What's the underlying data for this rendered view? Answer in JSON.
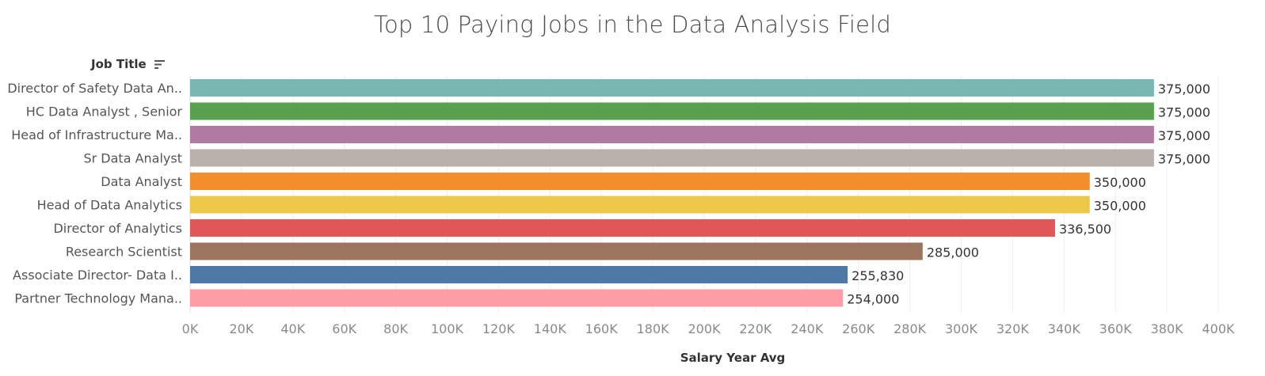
{
  "chart_data": {
    "type": "bar",
    "orientation": "horizontal",
    "title": "Top 10 Paying Jobs in the Data Analysis Field",
    "row_header": "Job Title",
    "xlabel": "Salary Year Avg",
    "ylabel": "",
    "xlim": [
      0,
      400000
    ],
    "grid": true,
    "categories": [
      "Director of Safety Data An..",
      "HC Data Analyst , Senior",
      "Head of Infrastructure Ma..",
      "Sr Data Analyst",
      "Data Analyst",
      "Head of Data Analytics",
      "Director of Analytics",
      "Research Scientist",
      "Associate Director- Data I..",
      "Partner Technology Mana.."
    ],
    "values": [
      375000,
      375000,
      375000,
      375000,
      350000,
      350000,
      336500,
      285000,
      255830,
      254000
    ],
    "value_labels": [
      "375,000",
      "375,000",
      "375,000",
      "375,000",
      "350,000",
      "350,000",
      "336,500",
      "285,000",
      "255,830",
      "254,000"
    ],
    "colors": [
      "#79b8b2",
      "#59a14f",
      "#b07aa1",
      "#bab0ac",
      "#f28e2b",
      "#edc948",
      "#e15759",
      "#9c755f",
      "#4e79a7",
      "#ff9da7"
    ],
    "x_ticks": [
      0,
      20000,
      40000,
      60000,
      80000,
      100000,
      120000,
      140000,
      160000,
      180000,
      200000,
      220000,
      240000,
      260000,
      280000,
      300000,
      320000,
      340000,
      360000,
      380000,
      400000
    ],
    "x_tick_labels": [
      "0K",
      "20K",
      "40K",
      "60K",
      "80K",
      "100K",
      "120K",
      "140K",
      "160K",
      "180K",
      "200K",
      "220K",
      "240K",
      "260K",
      "280K",
      "300K",
      "320K",
      "340K",
      "360K",
      "380K",
      "400K"
    ]
  }
}
